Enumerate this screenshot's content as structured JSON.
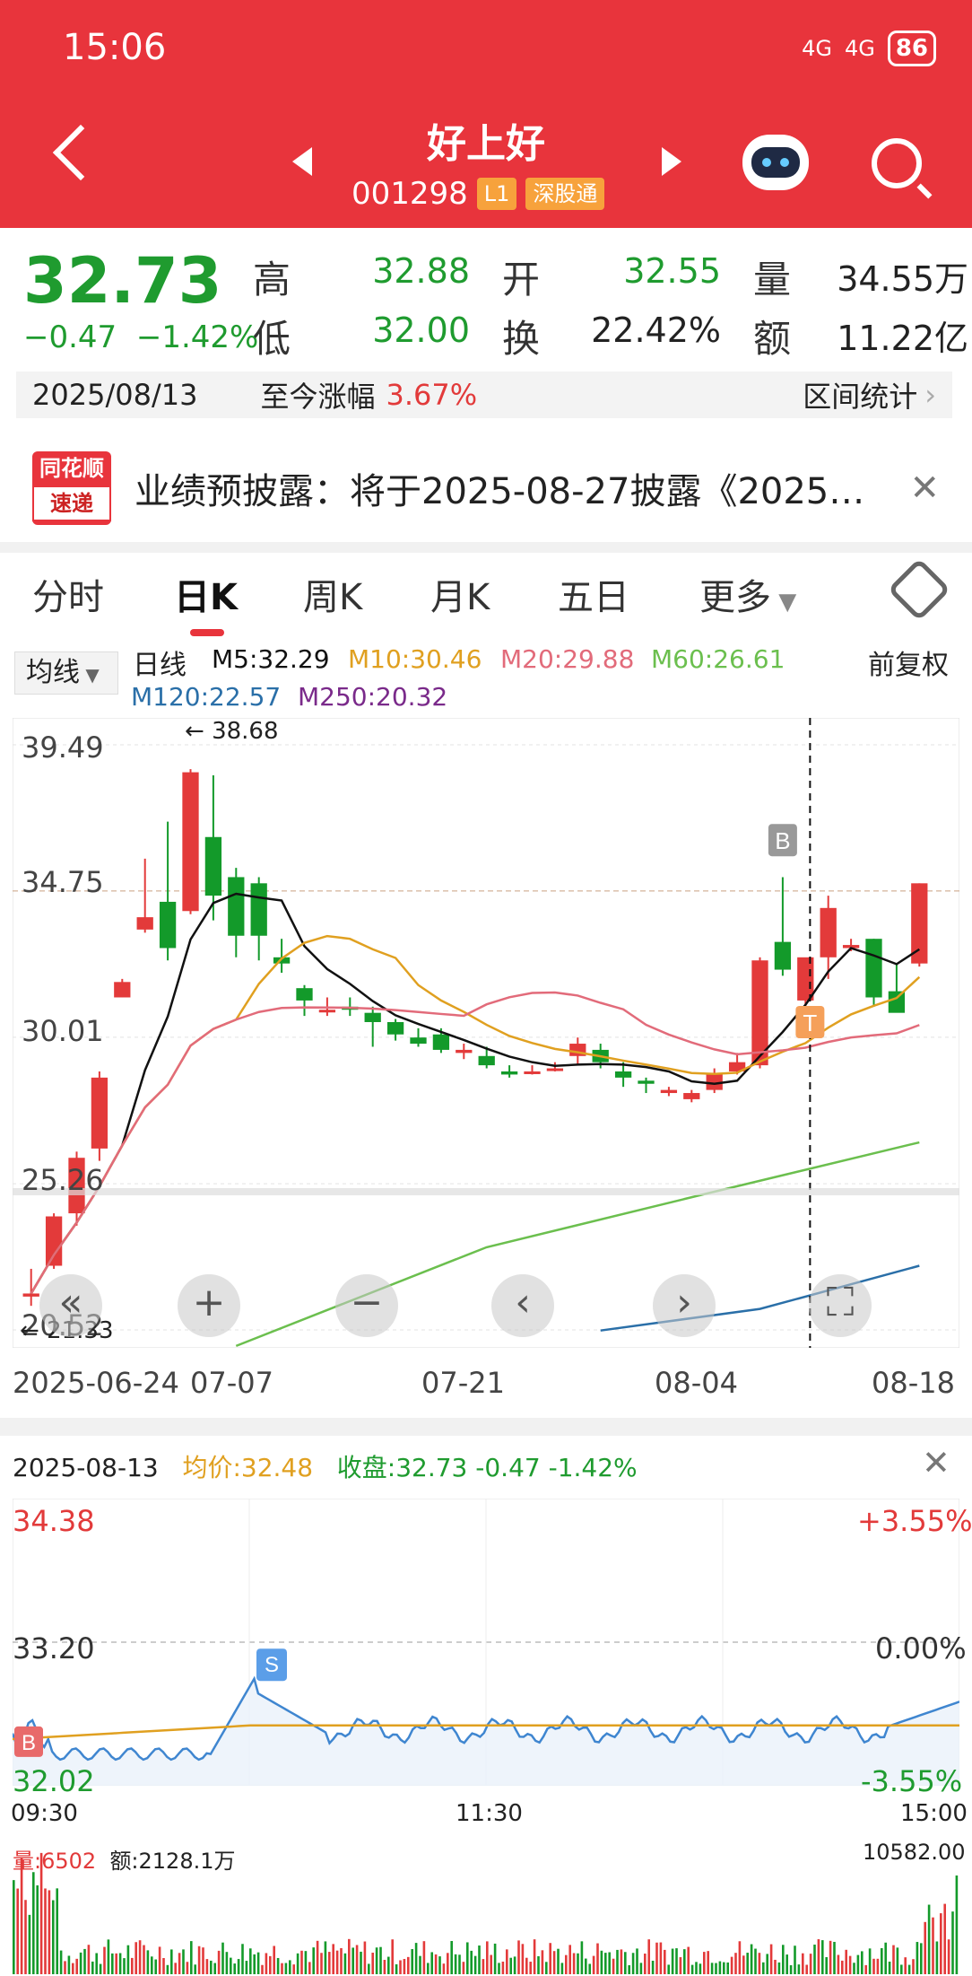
{
  "status_bar": {
    "time": "15:06",
    "net1": "4G",
    "net2": "4G",
    "battery": "86"
  },
  "nav": {
    "title": "好上好",
    "code": "001298",
    "tag_l1": "L1",
    "tag_sgt": "深股通"
  },
  "quote": {
    "price": "32.73",
    "change": "−0.47",
    "change_pct": "−1.42%",
    "high_label": "高",
    "high": "32.88",
    "open_label": "开",
    "open": "32.55",
    "vol_label": "量",
    "vol": "34.55万",
    "low_label": "低",
    "low": "32.00",
    "turn_label": "换",
    "turn": "22.42%",
    "amt_label": "额",
    "amt": "11.22亿"
  },
  "date_bar": {
    "date": "2025/08/13",
    "since_label": "至今涨幅",
    "since_val": "3.67%",
    "stats": "区间统计"
  },
  "notice": {
    "logo_top": "同花顺",
    "logo_bottom": "速递",
    "text": "业绩预披露：将于2025-08-27披露《2025…"
  },
  "tabs": [
    "分时",
    "日K",
    "周K",
    "月K",
    "五日",
    "更多"
  ],
  "ma": {
    "selector": "均线",
    "kline": "日线",
    "m5": "M5:32.29",
    "m10": "M10:30.46",
    "m20": "M20:29.88",
    "m60": "M60:26.61",
    "fq": "前复权",
    "m120": "M120:22.57",
    "m250": "M250:20.32",
    "colors": {
      "m5": "#111111",
      "m10": "#e0a020",
      "m20": "#e26b7a",
      "m60": "#6bbf4e",
      "m120": "#2a6fa8",
      "m250": "#7a2a8a"
    }
  },
  "kchart": {
    "y_labels": [
      "39.49",
      "34.75",
      "30.01",
      "25.26",
      "20.52"
    ],
    "high_note": "38.68",
    "low_note": "21.33",
    "x_labels": [
      "2025-06-24",
      "07-07",
      "07-21",
      "08-04",
      "08-18"
    ],
    "marker_b": "B",
    "marker_t": "T"
  },
  "chart_data": {
    "type": "candlestick",
    "ylim": [
      20.52,
      39.49
    ],
    "candles": [
      [
        21.6,
        22.5,
        21.3,
        21.7
      ],
      [
        22.6,
        24.3,
        22.5,
        24.2
      ],
      [
        24.3,
        26.3,
        23.9,
        26.1
      ],
      [
        26.4,
        28.9,
        26.0,
        28.7
      ],
      [
        31.3,
        31.9,
        31.3,
        31.8
      ],
      [
        33.5,
        35.8,
        33.4,
        33.9
      ],
      [
        34.4,
        37.0,
        32.5,
        32.9
      ],
      [
        34.1,
        38.7,
        34.0,
        38.6
      ],
      [
        36.5,
        38.5,
        33.8,
        34.6
      ],
      [
        35.2,
        35.5,
        32.6,
        33.3
      ],
      [
        35.0,
        35.2,
        32.5,
        33.3
      ],
      [
        32.6,
        33.2,
        32.1,
        32.4
      ],
      [
        31.6,
        31.7,
        30.7,
        31.2
      ],
      [
        30.9,
        31.3,
        30.7,
        30.9
      ],
      [
        31.0,
        31.3,
        30.7,
        30.9
      ],
      [
        30.8,
        31.0,
        29.7,
        30.5
      ],
      [
        30.5,
        30.6,
        29.9,
        30.1
      ],
      [
        30.0,
        30.3,
        29.7,
        29.8
      ],
      [
        30.1,
        30.3,
        29.5,
        29.6
      ],
      [
        29.5,
        29.8,
        29.3,
        29.6
      ],
      [
        29.4,
        29.7,
        29.0,
        29.1
      ],
      [
        28.9,
        29.1,
        28.7,
        28.8
      ],
      [
        28.9,
        29.1,
        28.8,
        28.9
      ],
      [
        29.0,
        29.2,
        28.9,
        29.0
      ],
      [
        29.4,
        30.0,
        29.1,
        29.8
      ],
      [
        29.6,
        29.8,
        29.0,
        29.2
      ],
      [
        28.9,
        29.2,
        28.4,
        28.7
      ],
      [
        28.6,
        28.7,
        28.2,
        28.5
      ],
      [
        28.2,
        28.4,
        28.1,
        28.3
      ],
      [
        28.0,
        28.3,
        27.9,
        28.2
      ],
      [
        28.3,
        29.0,
        28.2,
        28.8
      ],
      [
        28.9,
        29.5,
        28.8,
        29.2
      ],
      [
        29.1,
        32.6,
        29.0,
        32.5
      ],
      [
        33.1,
        35.2,
        32.0,
        32.2
      ],
      [
        31.2,
        32.5,
        30.7,
        32.6
      ],
      [
        32.6,
        34.6,
        31.9,
        34.2
      ],
      [
        32.9,
        33.2,
        32.8,
        33.0
      ],
      [
        33.2,
        33.2,
        31.0,
        31.3
      ],
      [
        31.5,
        32.4,
        30.9,
        30.8
      ],
      [
        32.4,
        35.0,
        32.3,
        35.0
      ]
    ],
    "intraday": {
      "ylim": [
        32.02,
        34.38
      ],
      "prev_close": 33.2,
      "pct_top": "+3.55%",
      "pct_mid": "0.00%",
      "pct_bot": "-3.55%"
    }
  },
  "intra": {
    "date": "2025-08-13",
    "avg_label": "均价:",
    "avg": "32.48",
    "close_label": "收盘:",
    "close": "32.73 -0.47 -1.42%",
    "y_top": "34.38",
    "y_mid": "33.20",
    "y_bot": "32.02",
    "pct_top": "+3.55%",
    "pct_mid": "0.00%",
    "pct_bot": "-3.55%",
    "t_start": "09:30",
    "t_mid": "11:30",
    "t_end": "15:00",
    "marker_s": "S",
    "marker_b": "B",
    "vol_label": "量:6502",
    "amt_label": "额:2128.1万",
    "vol_max": "10582.00"
  }
}
